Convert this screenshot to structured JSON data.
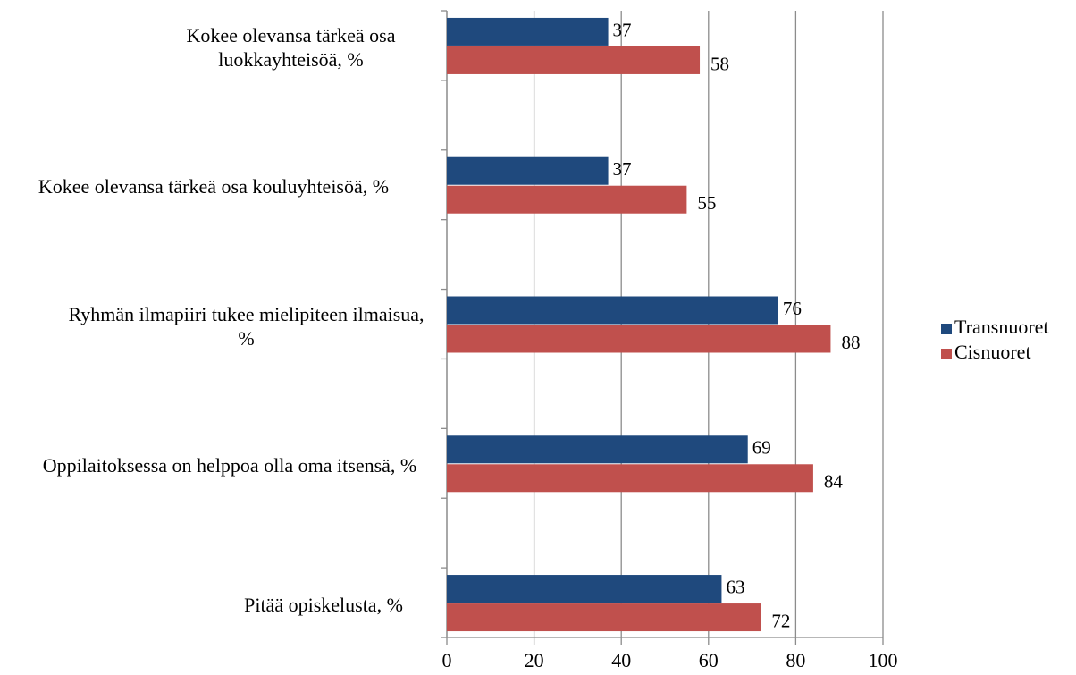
{
  "chart_data": {
    "type": "barh",
    "categories": [
      "Kokee olevansa tärkeä osa luokkayhteisöä, %",
      "Kokee olevansa tärkeä osa kouluyhteisöä, %",
      "Ryhmän ilmapiiri tukee mielipiteen ilmaisua, %",
      "Oppilaitoksessa on helppoa olla oma itsensä, %",
      "Pitää opiskelusta, %"
    ],
    "series": [
      {
        "name": "Transnuoret",
        "color": "#1f497d",
        "values": [
          37,
          37,
          76,
          69,
          63
        ]
      },
      {
        "name": "Cisnuoret",
        "color": "#c0504d",
        "values": [
          58,
          55,
          88,
          84,
          72
        ]
      }
    ],
    "xlim": [
      0,
      100
    ],
    "xticks": [
      0,
      20,
      40,
      60,
      80,
      100
    ],
    "grid": true,
    "legend": "right"
  }
}
